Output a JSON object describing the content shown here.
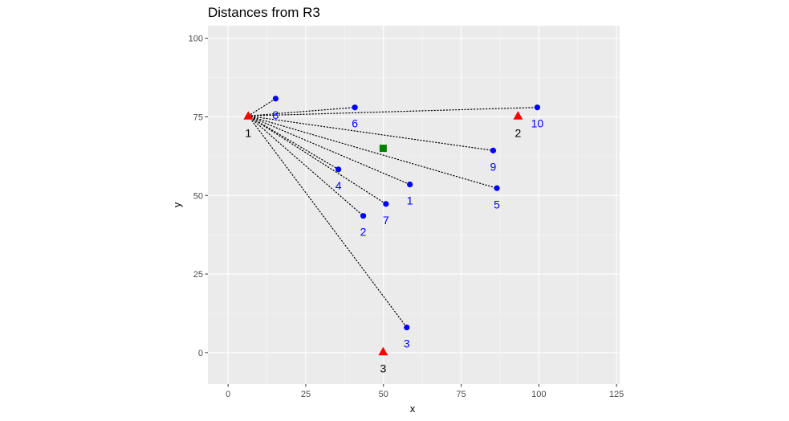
{
  "chart_data": {
    "type": "scatter",
    "title": "Distances from R3",
    "xlabel": "x",
    "ylabel": "y",
    "xlim": [
      -6.5,
      126
    ],
    "ylim": [
      -10,
      104
    ],
    "x_ticks": [
      0,
      25,
      50,
      75,
      100,
      125
    ],
    "y_ticks": [
      0,
      25,
      50,
      75,
      100
    ],
    "grid": true,
    "colors": {
      "panel": "#ebebeb",
      "grid_major": "#ffffff",
      "points": "#0000ff",
      "triangles": "#ff0000",
      "square": "#008000",
      "lines": "#000000",
      "triangle_labels": "#000000"
    },
    "series": [
      {
        "marker": "triangle",
        "points": [
          {
            "label": "1",
            "x": 6.5,
            "y": 75.3
          },
          {
            "label": "2",
            "x": 93.3,
            "y": 75.3
          },
          {
            "label": "3",
            "x": 49.9,
            "y": 0.3
          }
        ]
      },
      {
        "marker": "circle",
        "points": [
          {
            "label": "1",
            "x": 58.5,
            "y": 53.5
          },
          {
            "label": "2",
            "x": 43.5,
            "y": 43.5
          },
          {
            "label": "3",
            "x": 57.5,
            "y": 8.0
          },
          {
            "label": "4",
            "x": 35.5,
            "y": 58.3
          },
          {
            "label": "5",
            "x": 86.5,
            "y": 52.3
          },
          {
            "label": "6",
            "x": 40.8,
            "y": 78.0
          },
          {
            "label": "7",
            "x": 50.8,
            "y": 47.3
          },
          {
            "label": "8",
            "x": 15.3,
            "y": 80.8
          },
          {
            "label": "9",
            "x": 85.3,
            "y": 64.3
          },
          {
            "label": "10",
            "x": 99.5,
            "y": 78.0
          }
        ]
      },
      {
        "marker": "square",
        "points": [
          {
            "x": 49.9,
            "y": 65.0
          }
        ]
      }
    ],
    "segments_from": "1",
    "segments_to": [
      "1",
      "2",
      "3",
      "4",
      "5",
      "6",
      "7",
      "8",
      "9",
      "10"
    ]
  }
}
